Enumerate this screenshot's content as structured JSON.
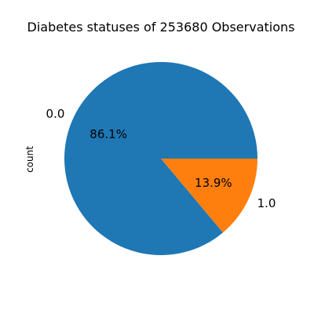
{
  "chart_data": {
    "type": "pie",
    "title": "Diabetes statuses of 253680 Observations",
    "ylabel": "count",
    "xlabel": "",
    "slices": [
      {
        "label": "0.0",
        "percent": 86.1,
        "pct_label": "86.1%",
        "color": "#1f77b4"
      },
      {
        "label": "1.0",
        "percent": 13.9,
        "pct_label": "13.9%",
        "color": "#ff7f0e"
      }
    ],
    "start_angle_deg": 0,
    "direction": "counterclockwise",
    "legend": "none"
  }
}
